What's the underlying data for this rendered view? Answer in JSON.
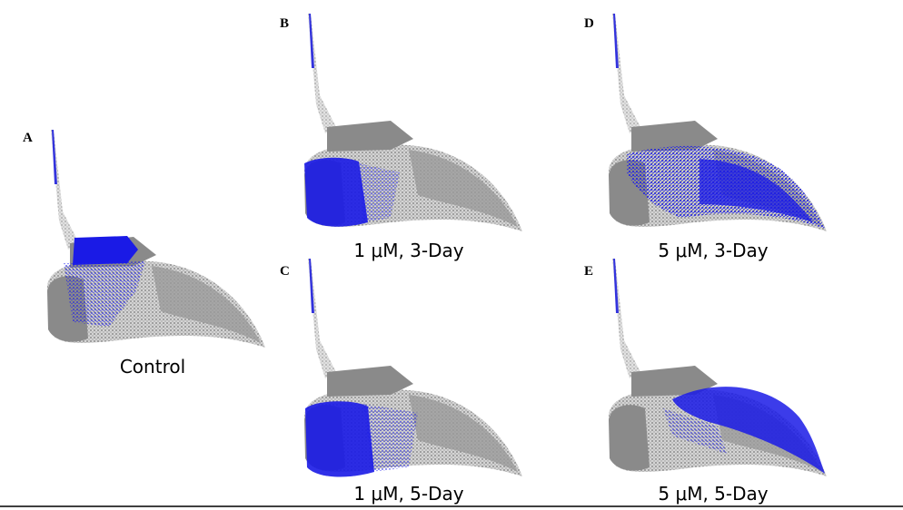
{
  "panels": [
    {
      "letter": "A",
      "caption": "Control"
    },
    {
      "letter": "B",
      "caption": "1 μM, 3-Day"
    },
    {
      "letter": "C",
      "caption": "1 μM, 5-Day"
    },
    {
      "letter": "D",
      "caption": "5 μM, 3-Day"
    },
    {
      "letter": "E",
      "caption": "5 μM, 5-Day"
    }
  ]
}
